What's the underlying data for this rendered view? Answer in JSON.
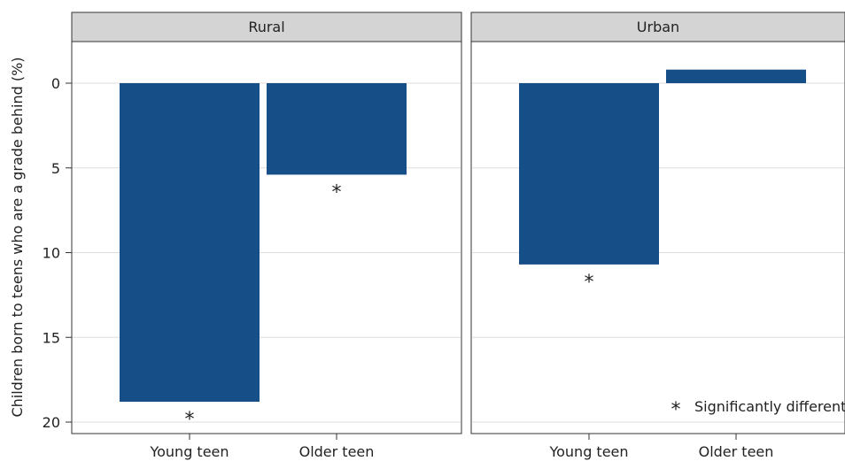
{
  "chart_data": {
    "type": "bar",
    "ylabel": "Children born to teens who are a grade behind (%)",
    "y_axis_inverted": true,
    "ylim": [
      0,
      21
    ],
    "yticks": [
      0,
      5,
      10,
      15,
      20
    ],
    "categories": [
      "Young teen",
      "Older teen"
    ],
    "grid": true,
    "facets": [
      {
        "name": "Rural",
        "values": [
          18.8,
          5.4
        ],
        "significant": [
          true,
          true
        ]
      },
      {
        "name": "Urban",
        "values": [
          10.7,
          -0.8
        ],
        "significant": [
          true,
          false
        ]
      }
    ],
    "annotations": {
      "significance_marker": "*",
      "legend_text": "Significantly different"
    },
    "colors": {
      "bar": "#164e87",
      "strip": "#d4d4d4",
      "grid": "#dddddd"
    }
  }
}
